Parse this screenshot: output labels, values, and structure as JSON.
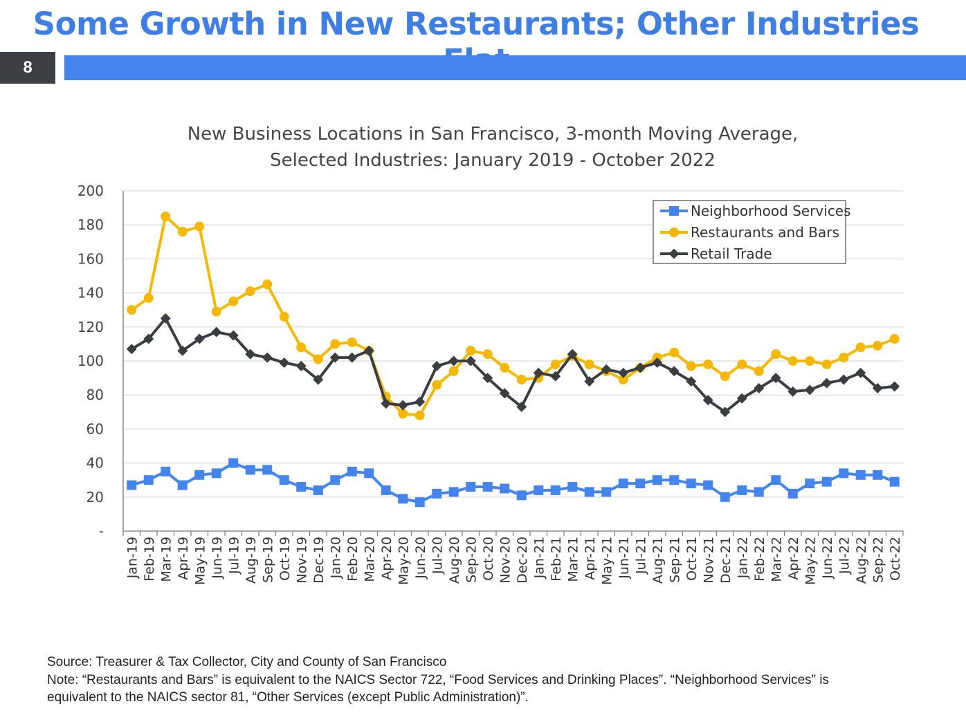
{
  "slide": {
    "title": "Some Growth in New Restaurants; Other Industries Flat",
    "page_number": "8",
    "accent_color": "#4385ec"
  },
  "chart_data": {
    "type": "line",
    "title_lines": [
      "New Business Locations in San Francisco, 3-month Moving Average,",
      "Selected Industries: January 2019 - October 2022"
    ],
    "xlabel": "",
    "ylabel": "",
    "ylim": [
      0,
      200
    ],
    "yticks": [
      0,
      20,
      40,
      60,
      80,
      100,
      120,
      140,
      160,
      180,
      200
    ],
    "ytick_labels": [
      "-",
      "20",
      "40",
      "60",
      "80",
      "100",
      "120",
      "140",
      "160",
      "180",
      "200"
    ],
    "grid": "horizontal",
    "legend_placement": "top-right",
    "categories": [
      "Jan-19",
      "Feb-19",
      "Mar-19",
      "Apr-19",
      "May-19",
      "Jun-19",
      "Jul-19",
      "Aug-19",
      "Sep-19",
      "Oct-19",
      "Nov-19",
      "Dec-19",
      "Jan-20",
      "Feb-20",
      "Mar-20",
      "Apr-20",
      "May-20",
      "Jun-20",
      "Jul-20",
      "Aug-20",
      "Sep-20",
      "Oct-20",
      "Nov-20",
      "Dec-20",
      "Jan-21",
      "Feb-21",
      "Mar-21",
      "Apr-21",
      "May-21",
      "Jun-21",
      "Jul-21",
      "Aug-21",
      "Sep-21",
      "Oct-21",
      "Nov-21",
      "Dec-21",
      "Jan-22",
      "Feb-22",
      "Mar-22",
      "Apr-22",
      "May-22",
      "Jun-22",
      "Jul-22",
      "Aug-22",
      "Sep-22",
      "Oct-22"
    ],
    "series": [
      {
        "name": "Neighborhood Services",
        "color": "#4385ec",
        "marker": "square",
        "values": [
          27,
          30,
          35,
          27,
          33,
          34,
          40,
          36,
          36,
          30,
          26,
          24,
          30,
          35,
          34,
          24,
          19,
          17,
          22,
          23,
          26,
          26,
          25,
          21,
          24,
          24,
          26,
          23,
          23,
          28,
          28,
          30,
          30,
          28,
          27,
          20,
          24,
          23,
          30,
          22,
          28,
          29,
          34,
          33,
          33,
          29
        ]
      },
      {
        "name": "Restaurants and Bars",
        "color": "#f5b800",
        "marker": "circle",
        "values": [
          130,
          137,
          185,
          176,
          179,
          129,
          135,
          141,
          145,
          126,
          108,
          101,
          110,
          111,
          106,
          79,
          69,
          68,
          86,
          94,
          106,
          104,
          96,
          89,
          90,
          98,
          103,
          98,
          94,
          89,
          96,
          102,
          105,
          97,
          98,
          91,
          98,
          94,
          104,
          100,
          100,
          98,
          102,
          108,
          109,
          113
        ]
      },
      {
        "name": "Retail Trade",
        "color": "#3a3d42",
        "marker": "diamond",
        "values": [
          107,
          113,
          125,
          106,
          113,
          117,
          115,
          104,
          102,
          99,
          97,
          89,
          102,
          102,
          106,
          75,
          74,
          76,
          97,
          100,
          100,
          90,
          81,
          73,
          93,
          91,
          104,
          88,
          95,
          93,
          96,
          99,
          94,
          88,
          77,
          70,
          78,
          84,
          90,
          82,
          83,
          87,
          89,
          93,
          84,
          85
        ]
      }
    ]
  },
  "footer": {
    "source": "Source: Treasurer & Tax Collector, City and County of San Francisco",
    "note_line1": "Note: “Restaurants and Bars” is equivalent to the NAICS Sector 722, “Food Services and Drinking Places”. “Neighborhood Services” is",
    "note_line2": "equivalent to the NAICS sector 81, “Other Services (except Public Administration)”."
  }
}
